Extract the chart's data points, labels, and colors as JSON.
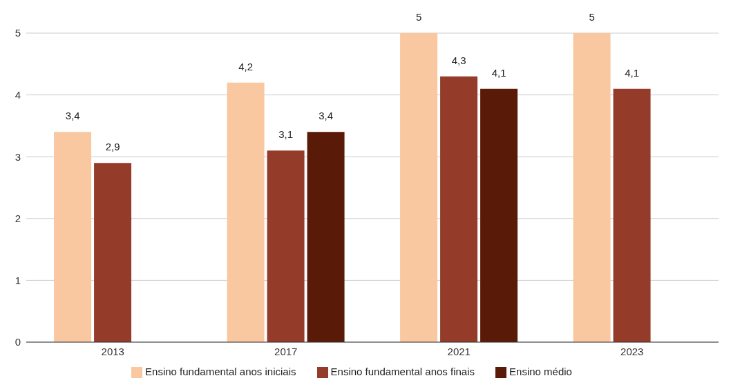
{
  "chart_data": {
    "type": "bar",
    "categories": [
      "2013",
      "2017",
      "2021",
      "2023"
    ],
    "series": [
      {
        "name": "Ensino fundamental anos iniciais",
        "color": "#f9c8a0",
        "values": [
          3.4,
          4.2,
          5,
          5
        ],
        "value_labels": [
          "3,4",
          "4,2",
          "5",
          "5"
        ]
      },
      {
        "name": "Ensino fundamental anos finais",
        "color": "#953b2a",
        "values": [
          2.9,
          3.1,
          4.3,
          4.1
        ],
        "value_labels": [
          "2,9",
          "3,1",
          "4,3",
          "4,1"
        ]
      },
      {
        "name": "Ensino médio",
        "color": "#5a1a08",
        "values": [
          null,
          3.4,
          4.1,
          null
        ],
        "value_labels": [
          null,
          "3,4",
          "4,1",
          null
        ]
      }
    ],
    "ylim": [
      0,
      5
    ],
    "yticks": [
      0,
      1,
      2,
      3,
      4,
      5
    ],
    "grid": "y",
    "legend": "bottom"
  }
}
